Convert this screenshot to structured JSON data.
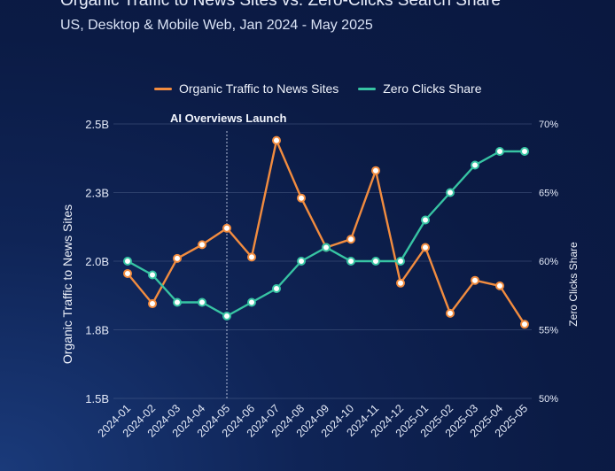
{
  "header": {
    "title": "Organic Traffic to News Sites vs. Zero-Clicks Search Share",
    "subtitle": "US, Desktop & Mobile Web, Jan 2024 - May 2025"
  },
  "annotation": {
    "label": "AI Overviews Launch",
    "x": "2024-05"
  },
  "colors": {
    "organic": "#f28c3f",
    "zero_clicks": "#37c4a3",
    "grid": "#5a6d94"
  },
  "chart_data": {
    "type": "line",
    "title": "Organic Traffic to News Sites vs. Zero-Clicks Search Share",
    "subtitle": "US, Desktop & Mobile Web, Jan 2024 - May 2025",
    "categories": [
      "2024-01",
      "2024-02",
      "2024-03",
      "2024-04",
      "2024-05",
      "2024-06",
      "2024-07",
      "2024-08",
      "2024-09",
      "2024-10",
      "2024-11",
      "2024-12",
      "2025-01",
      "2025-02",
      "2025-03",
      "2025-04",
      "2025-05"
    ],
    "ylabel_left": "Organic Traffic to News Sites",
    "ylabel_right": "Zero Clicks Share",
    "left_axis": {
      "ylim": [
        1.5,
        2.5
      ],
      "ticks": [
        1.5,
        1.75,
        2.0,
        2.25,
        2.5
      ],
      "tick_labels": [
        "1.5B",
        "1.8B",
        "2.0B",
        "2.3B",
        "2.5B"
      ]
    },
    "right_axis": {
      "ylim": [
        50,
        70
      ],
      "ticks": [
        50,
        55,
        60,
        65,
        70
      ],
      "tick_labels": [
        "50%",
        "55%",
        "60%",
        "65%",
        "70%"
      ]
    },
    "legend_position": "top",
    "grid": true,
    "series": [
      {
        "name": "Organic Traffic to News Sites",
        "axis": "left",
        "values": [
          1.955,
          1.845,
          2.01,
          2.06,
          2.12,
          2.015,
          2.44,
          2.23,
          2.05,
          2.08,
          2.33,
          1.92,
          2.05,
          1.81,
          1.93,
          1.91,
          1.77
        ]
      },
      {
        "name": "Zero Clicks Share",
        "axis": "right",
        "values": [
          60,
          59,
          57,
          57,
          56,
          57,
          58,
          60,
          61,
          60,
          60,
          60,
          63,
          65,
          67,
          68,
          68
        ]
      }
    ]
  }
}
